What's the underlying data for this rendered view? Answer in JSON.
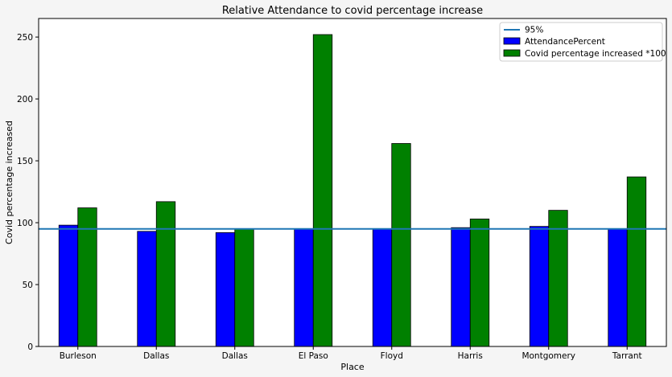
{
  "chart_data": {
    "type": "bar",
    "title": "Relative Attendance to covid percentage increase",
    "xlabel": "Place",
    "ylabel": "Covid percentage increased",
    "categories": [
      "Burleson",
      "Dallas",
      "Dallas",
      "El Paso",
      "Floyd",
      "Harris",
      "Montgomery",
      "Tarrant"
    ],
    "series": [
      {
        "name": "AttendancePercent",
        "color": "#0000ff",
        "values": [
          98,
          93,
          92,
          95,
          95,
          96,
          97,
          95
        ]
      },
      {
        "name": "Covid percentage increased *100",
        "color": "#008000",
        "values": [
          112,
          117,
          95,
          252,
          164,
          103,
          110,
          137
        ]
      }
    ],
    "reference_line": {
      "name": "95%",
      "value": 95,
      "color": "#1f77b4"
    },
    "ylim": [
      0,
      265
    ],
    "yticks": [
      0,
      50,
      100,
      150,
      200,
      250
    ],
    "grid": false,
    "legend_position": "top-right"
  }
}
